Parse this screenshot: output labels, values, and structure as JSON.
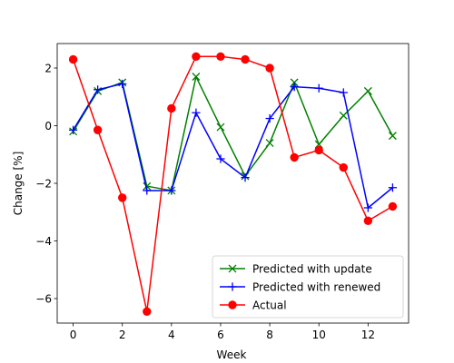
{
  "chart_data": {
    "type": "line",
    "title": "",
    "xlabel": "Week",
    "ylabel": "Change [%]",
    "xlim": [
      -0.65,
      13.65
    ],
    "ylim": [
      -6.85,
      2.85
    ],
    "xticks": [
      0,
      2,
      4,
      6,
      8,
      10,
      12
    ],
    "yticks": [
      2,
      0,
      -2,
      -4,
      -6
    ],
    "ytick_labels": [
      "2",
      "0",
      "−2",
      "−4",
      "−6"
    ],
    "grid": false,
    "legend_position": "lower right",
    "x": [
      0,
      1,
      2,
      3,
      4,
      5,
      6,
      7,
      8,
      9,
      10,
      11,
      12,
      13
    ],
    "series": [
      {
        "name": "Predicted with update",
        "color": "#008000",
        "marker": "x",
        "values": [
          -0.2,
          1.2,
          1.5,
          -2.1,
          -2.25,
          1.7,
          -0.05,
          -1.75,
          -0.6,
          1.5,
          -0.65,
          0.35,
          1.2,
          -0.35
        ]
      },
      {
        "name": "Predicted with renewed",
        "color": "#0000ff",
        "marker": "+",
        "values": [
          -0.15,
          1.25,
          1.45,
          -2.25,
          -2.25,
          0.45,
          -1.15,
          -1.8,
          0.25,
          1.35,
          1.3,
          1.15,
          -2.85,
          -2.15
        ]
      },
      {
        "name": "Actual",
        "color": "#ff0000",
        "marker": "o",
        "values": [
          2.3,
          -0.15,
          -2.5,
          -6.45,
          0.6,
          2.4,
          2.4,
          2.3,
          2.0,
          -1.1,
          -0.85,
          -1.45,
          -3.3,
          -2.8
        ]
      }
    ]
  }
}
